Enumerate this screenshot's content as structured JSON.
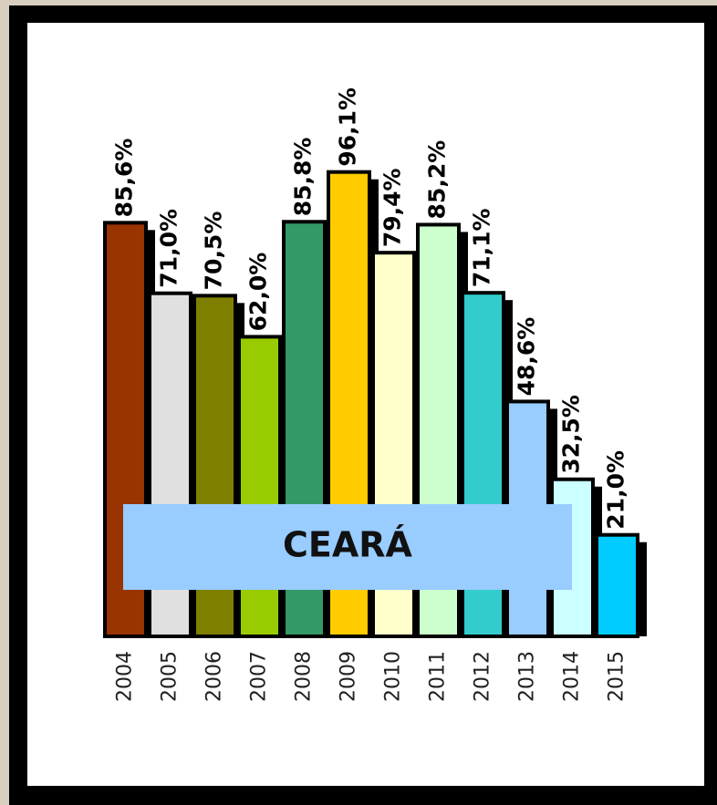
{
  "chart_data": {
    "type": "bar",
    "categories": [
      "2004",
      "2005",
      "2006",
      "2007",
      "2008",
      "2009",
      "2010",
      "2011",
      "2012",
      "2013",
      "2014",
      "2015"
    ],
    "values": [
      85.6,
      71.0,
      70.5,
      62.0,
      85.8,
      96.1,
      79.4,
      85.2,
      71.1,
      48.6,
      32.5,
      21.0
    ],
    "value_labels": [
      "85,6%",
      "71,0%",
      "70,5%",
      "62,0%",
      "85,8%",
      "96,1%",
      "79,4%",
      "85,2%",
      "71,1%",
      "48,6%",
      "32,5%",
      "21,0%"
    ],
    "colors": [
      "#993300",
      "#e0e0e0",
      "#808000",
      "#99cc00",
      "#339966",
      "#ffcc00",
      "#ffffcc",
      "#ccffcc",
      "#33cccc",
      "#99ccff",
      "#ccffff",
      "#00ccff"
    ],
    "ylim": [
      0,
      100
    ],
    "annotation": "CEARÁ"
  }
}
